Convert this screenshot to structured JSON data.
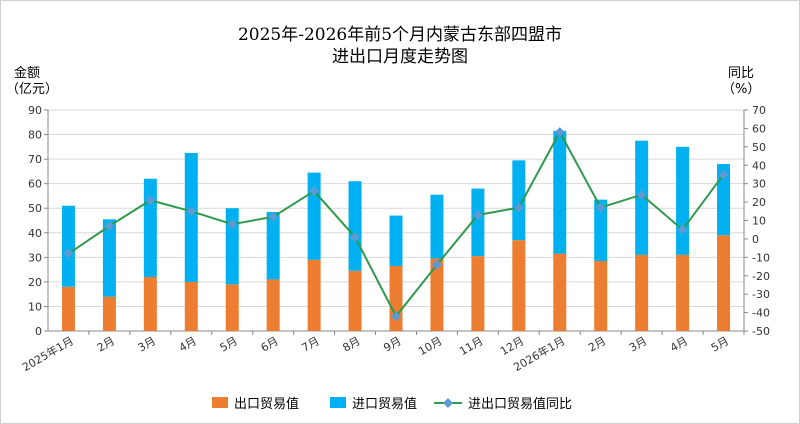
{
  "chart_data": {
    "type": "bar",
    "title": "2025年-2026年前5个月内蒙古东部四盟市",
    "subtitle": "进出口月度走势图",
    "ylabel_left": [
      "金额",
      "（亿元）"
    ],
    "ylabel_right": [
      "同比",
      "（%）"
    ],
    "ylim_left": [
      0,
      90
    ],
    "ylim_right": [
      -50,
      70
    ],
    "yticks_left": [
      0,
      10,
      20,
      30,
      40,
      50,
      60,
      70,
      80,
      90
    ],
    "yticks_right": [
      -50,
      -40,
      -30,
      -20,
      -10,
      0,
      10,
      20,
      30,
      40,
      50,
      60,
      70
    ],
    "categories": [
      "2025年1月",
      "2月",
      "3月",
      "4月",
      "5月",
      "6月",
      "7月",
      "8月",
      "9月",
      "10月",
      "11月",
      "12月",
      "2026年1月",
      "2月",
      "3月",
      "4月",
      "5月"
    ],
    "stacked": true,
    "series": [
      {
        "name": "出口贸易值",
        "type": "bar",
        "color": "#ed7d31",
        "values": [
          18,
          14,
          22,
          20,
          19,
          21,
          29,
          24.5,
          26.5,
          29.5,
          30.5,
          37,
          31.5,
          28.5,
          31,
          31,
          39
        ]
      },
      {
        "name": "进口贸易值",
        "type": "bar",
        "color": "#00b0f0",
        "values": [
          33,
          31.5,
          40,
          52.5,
          31,
          27.5,
          35.5,
          36.5,
          20.5,
          26,
          27.5,
          32.5,
          50,
          25,
          46.5,
          44,
          29
        ]
      },
      {
        "name": "进出口贸易值同比",
        "type": "line",
        "axis": "right",
        "color": "#2e9a4e",
        "marker_color": "#5b9bd5",
        "values": [
          -8,
          7,
          21,
          15,
          8,
          12,
          26,
          1,
          -42,
          -14,
          13,
          17,
          58,
          17,
          24,
          5,
          35
        ]
      }
    ],
    "legend": "bottom",
    "grid": true
  }
}
